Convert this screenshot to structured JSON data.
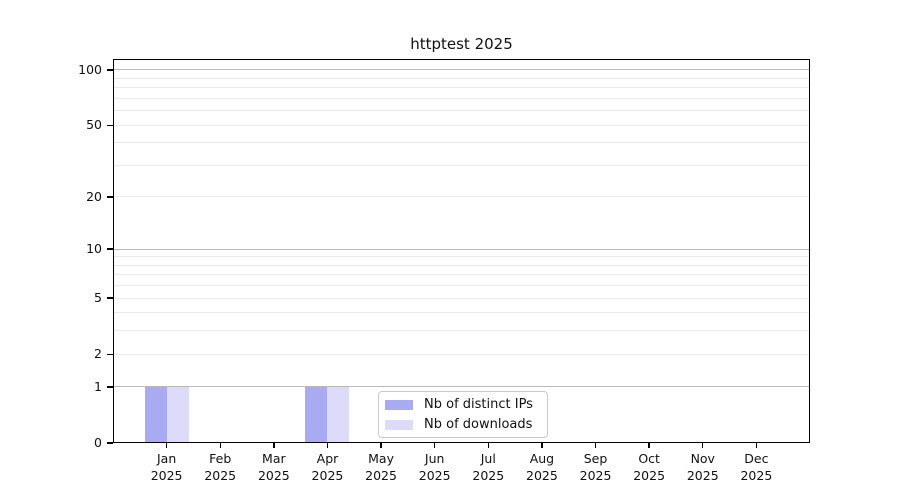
{
  "chart_data": {
    "type": "bar",
    "title": "httptest 2025",
    "categories": [
      "Jan",
      "Feb",
      "Mar",
      "Apr",
      "May",
      "Jun",
      "Jul",
      "Aug",
      "Sep",
      "Oct",
      "Nov",
      "Dec"
    ],
    "year_label": "2025",
    "series": [
      {
        "name": "Nb of distinct IPs",
        "color": "#aaaaf2",
        "values": [
          1,
          0,
          0,
          1,
          0,
          0,
          0,
          0,
          0,
          0,
          0,
          0
        ]
      },
      {
        "name": "Nb of downloads",
        "color": "#dcdcfa",
        "values": [
          1,
          0,
          0,
          1,
          0,
          0,
          0,
          0,
          0,
          0,
          0,
          0
        ]
      }
    ],
    "xlabel": "",
    "ylabel": "",
    "y_ticks": [
      100,
      50,
      20,
      10,
      5,
      2,
      1,
      0
    ],
    "y_scale": "log10(1+y)",
    "ylim": [
      0,
      115
    ],
    "grid": {
      "major_values": [
        1,
        10,
        100
      ],
      "minor_values": [
        2,
        3,
        4,
        5,
        6,
        7,
        8,
        9,
        20,
        30,
        40,
        50,
        60,
        70,
        80,
        90
      ],
      "major_color": "#b9b9b9",
      "minor_color": "#e9e9e9"
    },
    "legend_position": "inside-bottom-center"
  }
}
